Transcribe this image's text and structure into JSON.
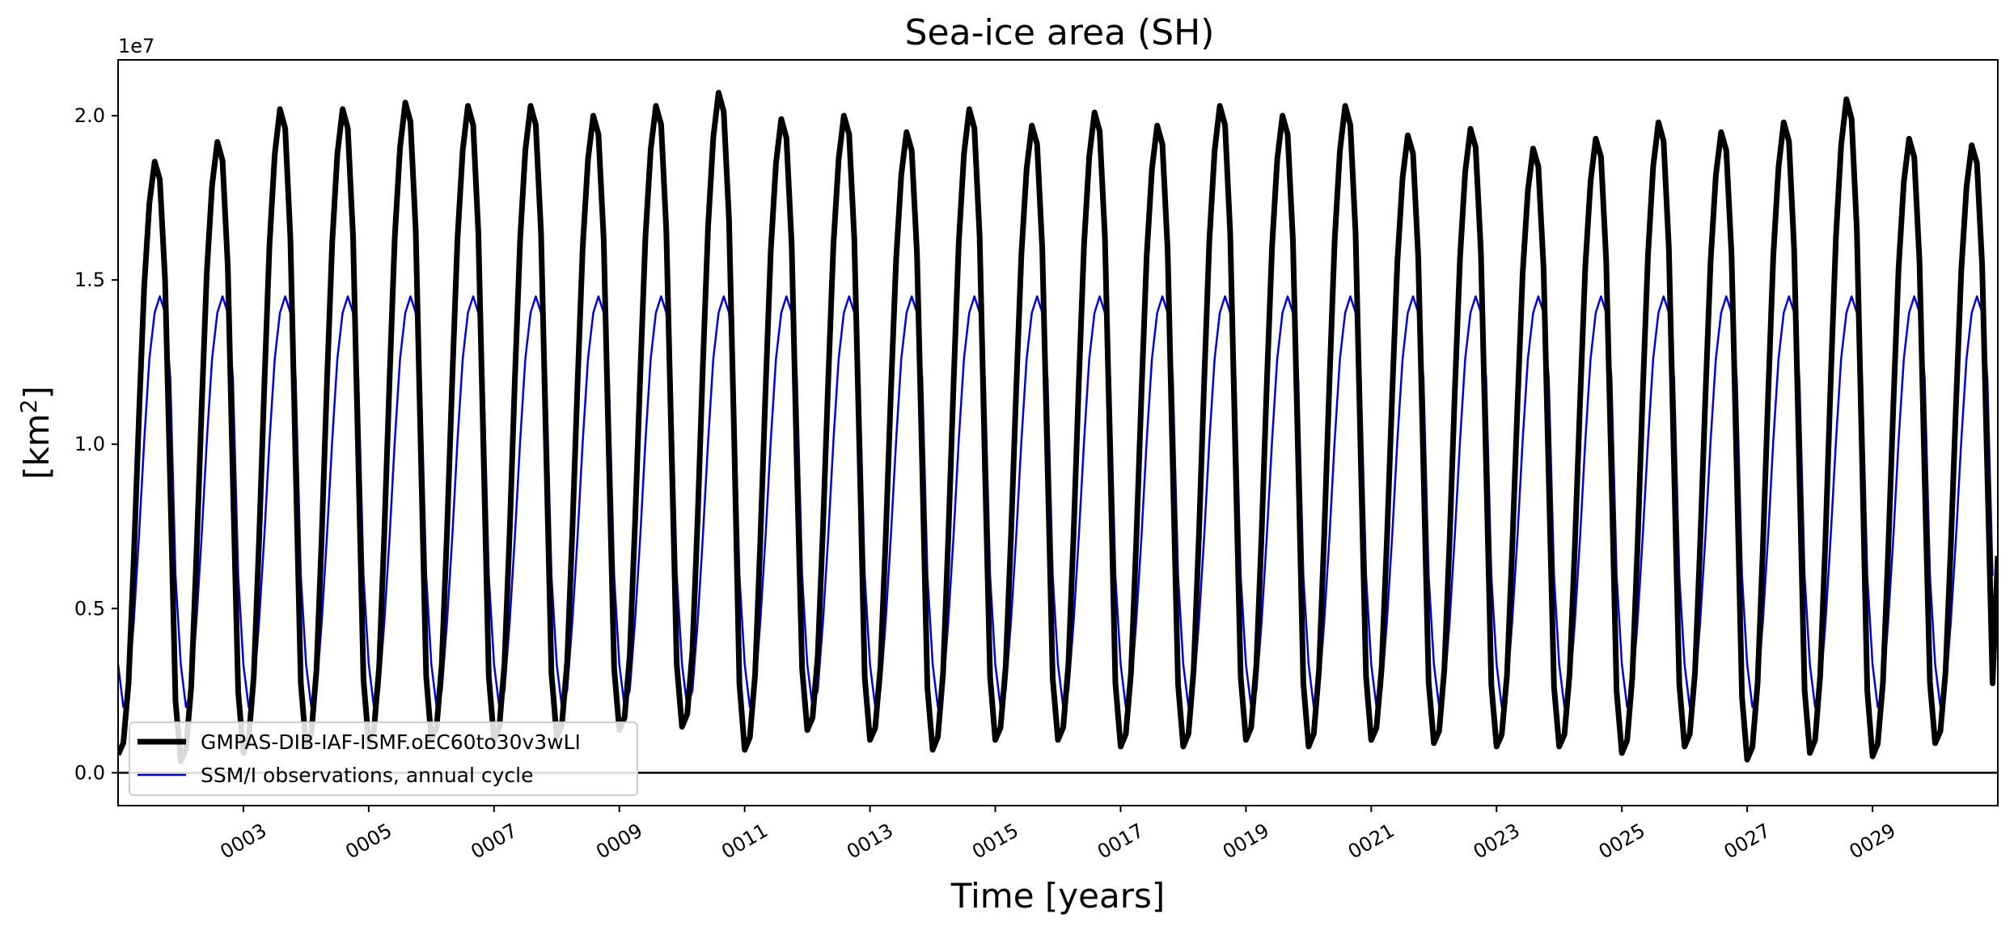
{
  "chart_data": {
    "type": "line",
    "title": "Sea-ice area (SH)",
    "xlabel": "Time [years]",
    "ylabel": "[km²]",
    "ylabel_base": "[km",
    "ylabel_sup": "2",
    "ylabel_close": "]",
    "y_multiplier_label": "1e7",
    "y_multiplier": 10000000,
    "ylim": [
      -1.0,
      21.7
    ],
    "xlim": [
      1.0,
      31.0
    ],
    "yticks": [
      0.0,
      0.5,
      1.0,
      1.5,
      2.0
    ],
    "ytick_labels": [
      "0.0",
      "0.5",
      "1.0",
      "1.5",
      "2.0"
    ],
    "xticks": [
      3,
      5,
      7,
      9,
      11,
      13,
      15,
      17,
      19,
      21,
      23,
      25,
      27,
      29
    ],
    "xtick_labels": [
      "0003",
      "0005",
      "0007",
      "0009",
      "0011",
      "0013",
      "0015",
      "0017",
      "0019",
      "0021",
      "0023",
      "0025",
      "0027",
      "0029"
    ],
    "zero_line": true,
    "grid": false,
    "legend_position": "lower-left",
    "series": [
      {
        "name": "GMPAS-DIB-IAF-ISMF.oEC60to30v3wLI",
        "color": "#000000",
        "style": "thick",
        "start_year": 1.0,
        "end_year": 31.0,
        "annual_max": [
          18.6,
          19.2,
          20.2,
          20.2,
          20.4,
          20.3,
          20.3,
          20.0,
          20.3,
          20.7,
          19.9,
          20.0,
          19.5,
          20.2,
          19.7,
          20.1,
          19.7,
          20.3,
          20.0,
          20.3,
          19.4,
          19.6,
          19.0,
          19.3,
          19.8,
          19.5,
          19.8,
          20.5,
          19.3,
          19.1
        ],
        "annual_min": [
          0.55,
          0.35,
          0.6,
          0.8,
          0.9,
          1.0,
          1.0,
          1.1,
          1.3,
          1.4,
          0.7,
          1.3,
          1.0,
          0.7,
          1.0,
          1.0,
          0.8,
          0.8,
          1.0,
          0.8,
          1.0,
          0.9,
          0.8,
          0.8,
          0.6,
          0.8,
          0.4,
          0.6,
          0.5,
          0.9
        ],
        "end_value": 6.6
      },
      {
        "name": "SSM/I observations, annual cycle",
        "color": "#0000dd",
        "style": "thin",
        "start_year": 1.0,
        "end_year": 31.0,
        "monthly_climatology": [
          3.3,
          2.0,
          2.5,
          4.6,
          7.2,
          10.1,
          12.6,
          14.0,
          14.5,
          14.0,
          12.0,
          6.0
        ]
      }
    ]
  }
}
